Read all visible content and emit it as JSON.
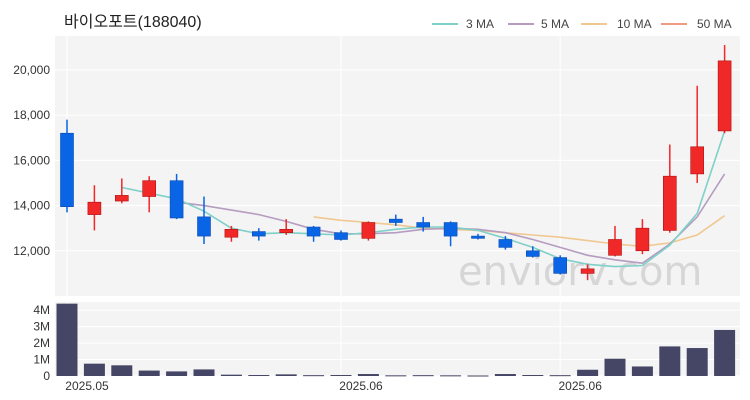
{
  "chart_data": {
    "type": "candlestick",
    "title": "바이오포트(188040)",
    "watermark": "enviorv.com",
    "legend": [
      {
        "label": "3 MA",
        "color": "#7fd0c8"
      },
      {
        "label": "5 MA",
        "color": "#b59cc0"
      },
      {
        "label": "10 MA",
        "color": "#f0c890"
      },
      {
        "label": "50 MA",
        "color": "#f09a80"
      }
    ],
    "colors": {
      "up": "#f02828",
      "down": "#0a64e6",
      "volume": "#454565",
      "panel_bg": "#f4f4f4",
      "grid": "#ffffff"
    },
    "price_axis": {
      "min": 10000,
      "max": 21500,
      "ticks": [
        12000,
        14000,
        16000,
        18000,
        20000
      ],
      "tick_labels": [
        "12,000",
        "14,000",
        "16,000",
        "18,000",
        "20,000"
      ]
    },
    "volume_axis": {
      "min": 0,
      "max": 4500000,
      "ticks": [
        0,
        1000000,
        2000000,
        3000000,
        4000000
      ],
      "tick_labels": [
        "0",
        "1M",
        "2M",
        "3M",
        "4M"
      ]
    },
    "x_labels": [
      {
        "index": 0,
        "label": "2025.05"
      },
      {
        "index": 10,
        "label": "2025.06"
      },
      {
        "index": 18,
        "label": "2025.06"
      }
    ],
    "candles": [
      {
        "o": 17200,
        "h": 17800,
        "l": 13700,
        "c": 13950,
        "v": 4400000
      },
      {
        "o": 13600,
        "h": 14900,
        "l": 12900,
        "c": 14150,
        "v": 750000
      },
      {
        "o": 14200,
        "h": 15200,
        "l": 14100,
        "c": 14450,
        "v": 650000
      },
      {
        "o": 14400,
        "h": 15300,
        "l": 13700,
        "c": 15100,
        "v": 330000
      },
      {
        "o": 15100,
        "h": 15400,
        "l": 13400,
        "c": 13450,
        "v": 280000
      },
      {
        "o": 13500,
        "h": 14400,
        "l": 12300,
        "c": 12650,
        "v": 400000
      },
      {
        "o": 12600,
        "h": 13100,
        "l": 12400,
        "c": 12950,
        "v": 80000
      },
      {
        "o": 12850,
        "h": 13000,
        "l": 12450,
        "c": 12650,
        "v": 60000
      },
      {
        "o": 12800,
        "h": 13400,
        "l": 12700,
        "c": 12950,
        "v": 100000
      },
      {
        "o": 13050,
        "h": 13100,
        "l": 12400,
        "c": 12650,
        "v": 50000
      },
      {
        "o": 12800,
        "h": 12900,
        "l": 12450,
        "c": 12500,
        "v": 60000
      },
      {
        "o": 12550,
        "h": 13300,
        "l": 12450,
        "c": 13250,
        "v": 120000
      },
      {
        "o": 13400,
        "h": 13600,
        "l": 13100,
        "c": 13250,
        "v": 40000
      },
      {
        "o": 13250,
        "h": 13500,
        "l": 12850,
        "c": 13050,
        "v": 50000
      },
      {
        "o": 13250,
        "h": 13300,
        "l": 12200,
        "c": 12650,
        "v": 40000
      },
      {
        "o": 12650,
        "h": 12750,
        "l": 12500,
        "c": 12550,
        "v": 30000
      },
      {
        "o": 12500,
        "h": 12650,
        "l": 12050,
        "c": 12150,
        "v": 120000
      },
      {
        "o": 12000,
        "h": 12200,
        "l": 11700,
        "c": 11750,
        "v": 60000
      },
      {
        "o": 11700,
        "h": 11800,
        "l": 10950,
        "c": 11000,
        "v": 50000
      },
      {
        "o": 11000,
        "h": 11400,
        "l": 10700,
        "c": 11200,
        "v": 380000
      },
      {
        "o": 11800,
        "h": 13100,
        "l": 11750,
        "c": 12500,
        "v": 1050000
      },
      {
        "o": 12000,
        "h": 13400,
        "l": 11850,
        "c": 13000,
        "v": 580000
      },
      {
        "o": 12900,
        "h": 16700,
        "l": 12800,
        "c": 15300,
        "v": 1800000
      },
      {
        "o": 15400,
        "h": 19300,
        "l": 15000,
        "c": 16600,
        "v": 1700000
      },
      {
        "o": 17300,
        "h": 21100,
        "l": 17200,
        "c": 20400,
        "v": 2800000
      }
    ],
    "ma3": [
      null,
      null,
      14800,
      14550,
      14300,
      13750,
      13000,
      12750,
      12800,
      12750,
      12700,
      12800,
      12950,
      13050,
      13050,
      12900,
      12550,
      12150,
      11650,
      11400,
      11300,
      11350,
      12250,
      13650,
      17300
    ],
    "ma5": [
      null,
      null,
      null,
      null,
      14150,
      14000,
      13800,
      13600,
      13300,
      12950,
      12750,
      12750,
      12800,
      12950,
      13000,
      12950,
      12800,
      12500,
      12150,
      11800,
      11600,
      11450,
      12300,
      13500,
      15400
    ],
    "ma10": [
      null,
      null,
      null,
      null,
      null,
      null,
      null,
      null,
      null,
      13500,
      13350,
      13250,
      13150,
      13000,
      12950,
      12900,
      12800,
      12700,
      12600,
      12450,
      12300,
      12200,
      12350,
      12700,
      13550
    ],
    "ma50": []
  }
}
